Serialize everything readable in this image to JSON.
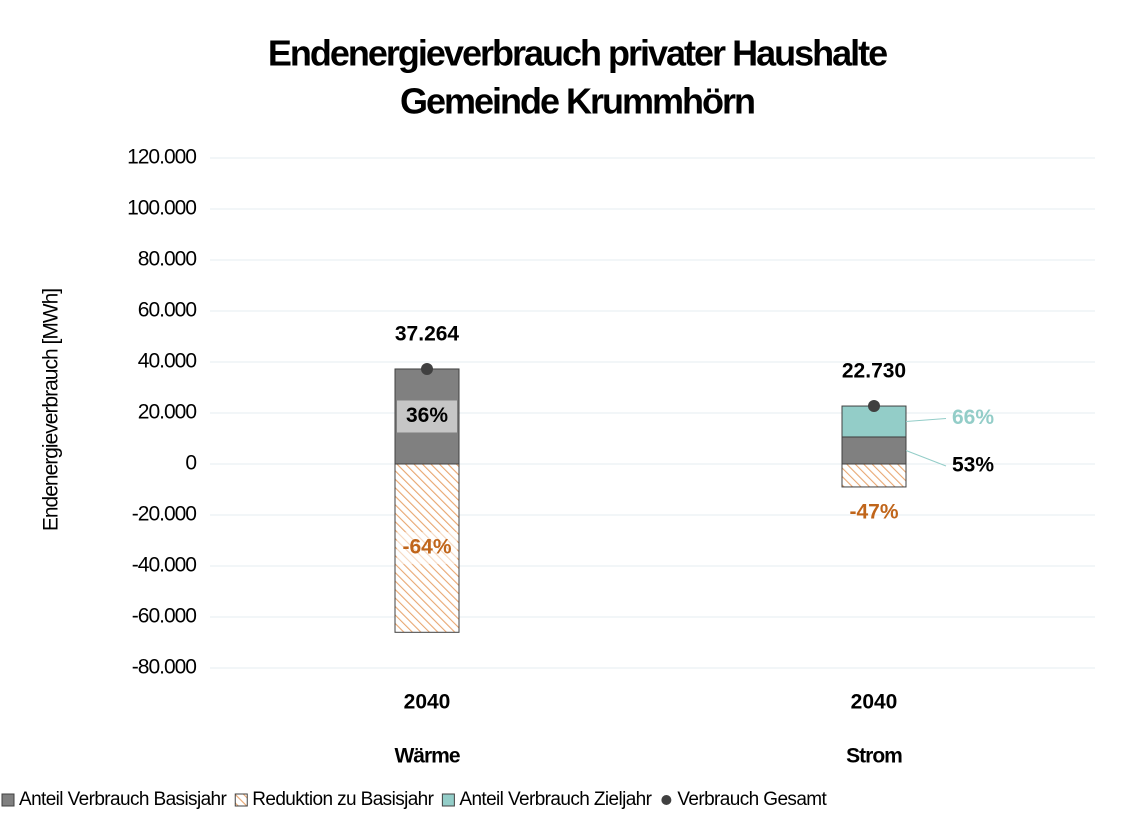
{
  "chart_data": {
    "type": "bar",
    "stacked": true,
    "title": "Endenergieverbrauch privater Haushalte",
    "subtitle": "Gemeinde Krummhörn",
    "y_label": "Endenergieverbrauch [MWh]",
    "categories": [
      "2040",
      "2040"
    ],
    "groups": [
      "Wärme",
      "Strom"
    ],
    "ylim": [
      -80000,
      120000
    ],
    "yticks": [
      {
        "value": -80000,
        "label": "-80.000"
      },
      {
        "value": -60000,
        "label": "-60.000"
      },
      {
        "value": -40000,
        "label": "-40.000"
      },
      {
        "value": -20000,
        "label": "-20.000"
      },
      0,
      {
        "value": 20000,
        "label": "20.000"
      },
      {
        "value": 40000,
        "label": "40.000"
      },
      {
        "value": 60000,
        "label": "60.000"
      },
      {
        "value": 80000,
        "label": "80.000"
      },
      {
        "value": 100000,
        "label": "100.000"
      },
      {
        "value": 120000,
        "label": "120.000"
      }
    ],
    "grid": true,
    "legend": "bottom",
    "series": [
      {
        "name": "Anteil Verbrauch Basisjahr",
        "color": "#808080",
        "values": [
          37264,
          10600
        ],
        "labels": [
          "36%",
          "53%"
        ],
        "label_color": "#000000"
      },
      {
        "name": "Reduktion zu Basisjahr",
        "color": "#e8a670",
        "pattern": "hatch",
        "values": [
          -66000,
          -9000
        ],
        "labels": [
          "-64%",
          "-47%"
        ],
        "label_color": "#c0651a"
      },
      {
        "name": "Anteil Verbrauch Zieljahr",
        "color": "#93cdc8",
        "values": [
          null,
          12130
        ],
        "labels": [
          null,
          "66%"
        ],
        "label_color": "#93cdc8"
      },
      {
        "name": "Verbrauch Gesamt",
        "type": "scatter",
        "color": "#404040",
        "values": [
          37264,
          22730
        ],
        "value_labels": [
          "37.264",
          "22.730"
        ]
      }
    ]
  }
}
